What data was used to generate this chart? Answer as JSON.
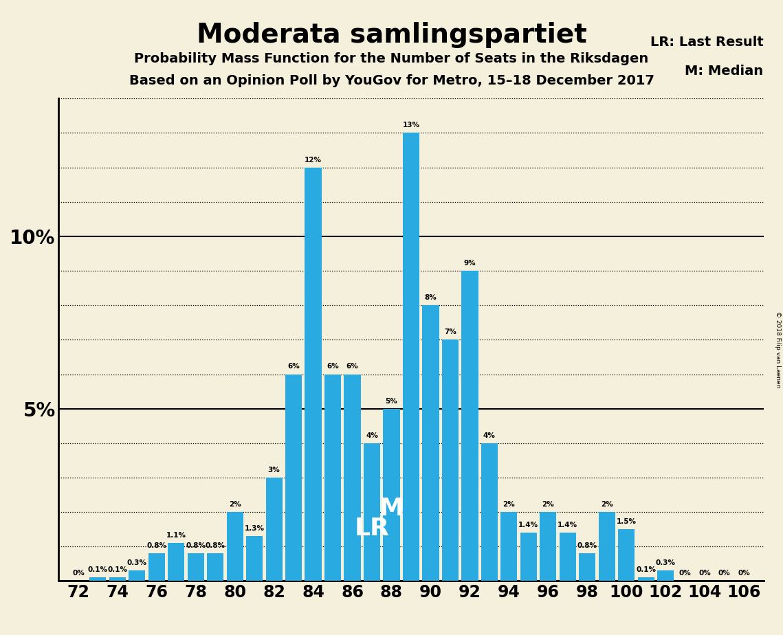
{
  "title": "Moderata samlingspartiet",
  "subtitle1": "Probability Mass Function for the Number of Seats in the Riksdagen",
  "subtitle2": "Based on an Opinion Poll by YouGov for Metro, 15–18 December 2017",
  "copyright": "© 2018 Filip van Laenen",
  "seats": [
    72,
    73,
    74,
    75,
    76,
    77,
    78,
    79,
    80,
    81,
    82,
    83,
    84,
    85,
    86,
    87,
    88,
    89,
    90,
    91,
    92,
    93,
    94,
    95,
    96,
    97,
    98,
    99,
    100,
    101,
    102,
    103,
    104,
    105,
    106
  ],
  "values": [
    0.0,
    0.1,
    0.1,
    0.3,
    0.8,
    1.1,
    0.8,
    0.8,
    2.0,
    1.3,
    3.0,
    6.0,
    12.0,
    6.0,
    6.0,
    4.0,
    5.0,
    13.0,
    8.0,
    7.0,
    9.0,
    4.0,
    2.0,
    1.4,
    2.0,
    1.4,
    0.8,
    2.0,
    1.5,
    0.1,
    0.3,
    0.0,
    0.0,
    0.0,
    0.0
  ],
  "labels": [
    "0%",
    "0.1%",
    "0.1%",
    "0.3%",
    "0.8%",
    "1.1%",
    "0.8%",
    "0.8%",
    "2%",
    "1.3%",
    "3%",
    "6%",
    "12%",
    "6%",
    "6%",
    "4%",
    "5%",
    "13%",
    "8%",
    "7%",
    "9%",
    "4%",
    "2%",
    "1.4%",
    "2%",
    "1.4%",
    "0.8%",
    "2%",
    "1.5%",
    "0.1%",
    "0.3%",
    "0%",
    "0%",
    "0%",
    "0%"
  ],
  "bar_color": "#29ABE2",
  "background_color": "#F5F0DC",
  "lr_seat": 87,
  "median_seat": 88,
  "lr_label": "LR",
  "median_label": "M",
  "lr_legend": "LR: Last Result",
  "median_legend": "M: Median",
  "ylim": [
    0,
    14
  ],
  "xtick_seats": [
    72,
    74,
    76,
    78,
    80,
    82,
    84,
    86,
    88,
    90,
    92,
    94,
    96,
    98,
    100,
    102,
    104,
    106
  ]
}
